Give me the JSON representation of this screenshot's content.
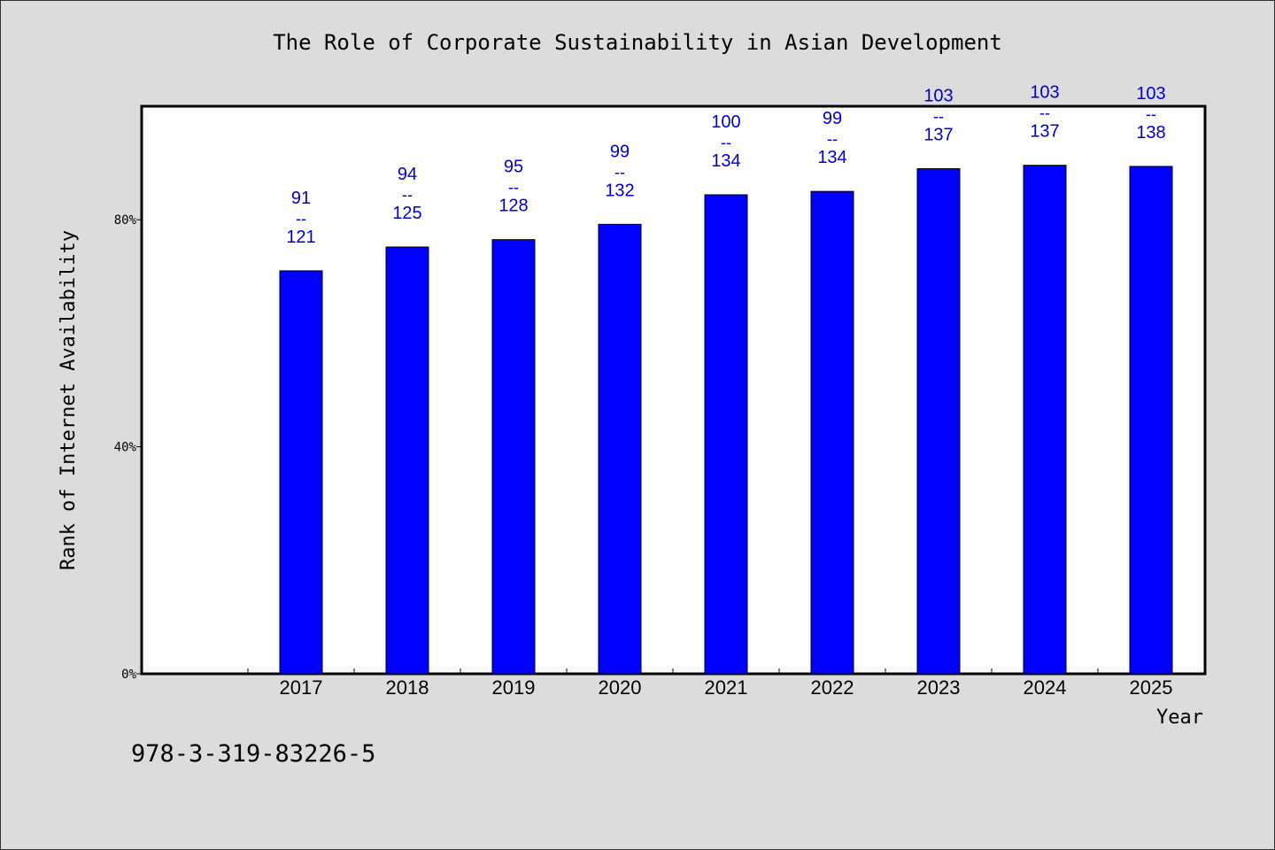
{
  "chart_data": {
    "type": "bar",
    "title": "The Role of Corporate Sustainability in Asian Development",
    "xlabel": "Year",
    "ylabel": "Rank of Internet Availability",
    "categories": [
      "2017",
      "2018",
      "2019",
      "2020",
      "2021",
      "2022",
      "2023",
      "2024",
      "2025"
    ],
    "values": [
      71.0,
      75.2,
      76.5,
      79.2,
      84.4,
      85.0,
      89.0,
      89.6,
      89.4
    ],
    "ranks": [
      91,
      94,
      95,
      99,
      100,
      99,
      103,
      103,
      103
    ],
    "totals": [
      121,
      125,
      128,
      132,
      134,
      134,
      137,
      137,
      138
    ],
    "label_separator": "--",
    "ylim": [
      0,
      100
    ],
    "yticks": [
      0,
      40,
      80
    ],
    "ytick_labels": [
      "0%",
      "40%",
      "80%"
    ],
    "grid": false,
    "bar_color": "#0000ff",
    "label_color": "#0000cc"
  },
  "footer": {
    "isbn": "978-3-319-83226-5"
  }
}
